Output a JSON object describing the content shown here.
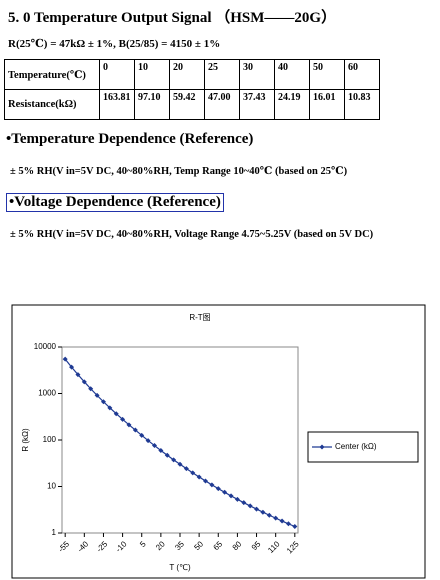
{
  "header": {
    "title": "5. 0 Temperature Output Signal （HSM——20G）",
    "spec": "R(25℃) = 47kΩ ± 1%, B(25/85) = 4150 ± 1%"
  },
  "table": {
    "rows": [
      [
        "Temperature(℃)",
        "0",
        "10",
        "20",
        "25",
        "30",
        "40",
        "50",
        "60"
      ],
      [
        "Resistance(kΩ)",
        "163.81",
        "97.10",
        "59.42",
        "47.00",
        "37.43",
        "24.19",
        "16.01",
        "10.83"
      ]
    ]
  },
  "sections": [
    {
      "heading": "•Temperature Dependence (Reference)",
      "text": "± 5% RH(V in=5V DC, 40~80%RH, Temp Range 10~40℃ (based on 25℃)"
    },
    {
      "heading": "•Voltage Dependence (Reference)",
      "text": "± 5% RH(V in=5V DC, 40~80%RH, Voltage Range 4.75~5.25V (based on 5V DC)"
    }
  ],
  "chart_data": {
    "type": "line",
    "title": "R-T图",
    "x_label": "T (℃)",
    "y_label": "R (kΩ)",
    "x": [
      -55,
      -50,
      -45,
      -40,
      -35,
      -30,
      -25,
      -20,
      -15,
      -10,
      -5,
      0,
      5,
      10,
      15,
      20,
      25,
      30,
      35,
      40,
      45,
      50,
      55,
      60,
      65,
      70,
      75,
      80,
      85,
      90,
      95,
      100,
      105,
      110,
      115,
      120,
      125
    ],
    "series": [
      {
        "name": "Center (kΩ)",
        "color": "#1f3a93",
        "values": [
          5470,
          3699,
          2547,
          1782,
          1265,
          911,
          665,
          492,
          368,
          278,
          212,
          163.81,
          126.1,
          97.1,
          75.96,
          59.42,
          47,
          37.43,
          30.09,
          24.19,
          19.68,
          16.01,
          13.17,
          10.83,
          8.99,
          7.5,
          6.29,
          5.3,
          4.49,
          3.82,
          3.27,
          2.8,
          2.41,
          2.09,
          1.81,
          1.58,
          1.38
        ]
      }
    ],
    "xlim": [
      -57.5,
      127.5
    ],
    "xticks": [
      -55,
      -40,
      -25,
      -10,
      5,
      20,
      35,
      50,
      65,
      80,
      95,
      110,
      125
    ],
    "ylim": [
      1,
      10000
    ],
    "yticks": [
      1,
      10,
      100,
      1000,
      10000
    ],
    "y_log": true,
    "grid": false,
    "legend": "right"
  }
}
